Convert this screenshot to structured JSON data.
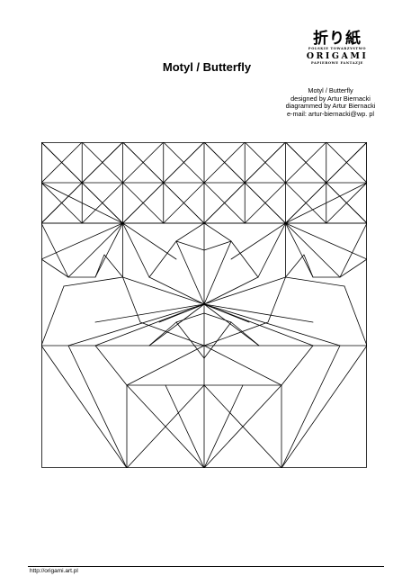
{
  "logo": {
    "kanji": "折り紙",
    "society": "POLSKIE TOWARZYSTWO",
    "origami": "ORIGAMI",
    "fantazje": "PAPIEROWE FANTAZJE"
  },
  "title": "Motyl / Butterfly",
  "credits": {
    "line1": "Motyl / Butterfly",
    "line2": "designed by Artur Biernacki",
    "line3": "diagrammed by Artur Biernacki",
    "line4": "e-mail: artur-biernacki@wp. pl"
  },
  "footer": {
    "url": "http://origami.art.pl"
  },
  "diagram": {
    "stroke_color": "#000000"
  }
}
